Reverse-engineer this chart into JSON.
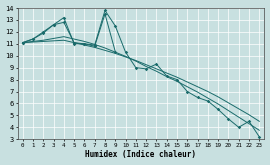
{
  "xlabel": "Humidex (Indice chaleur)",
  "xlim": [
    -0.5,
    23.5
  ],
  "ylim": [
    3,
    14
  ],
  "yticks": [
    3,
    4,
    5,
    6,
    7,
    8,
    9,
    10,
    11,
    12,
    13,
    14
  ],
  "xticks": [
    0,
    1,
    2,
    3,
    4,
    5,
    6,
    7,
    8,
    9,
    10,
    11,
    12,
    13,
    14,
    15,
    16,
    17,
    18,
    19,
    20,
    21,
    22,
    23
  ],
  "bg_color": "#c8e0e0",
  "grid_color": "#ffffff",
  "line_color": "#1a6b6b",
  "line1_x": [
    0,
    1,
    2,
    3,
    4,
    5,
    6,
    7,
    8,
    9,
    10,
    11,
    12,
    13,
    14,
    15,
    16,
    17,
    18,
    19,
    20,
    21,
    22,
    23
  ],
  "line1_y": [
    11.1,
    11.4,
    12.0,
    12.6,
    12.8,
    11.1,
    11.0,
    10.9,
    13.8,
    12.5,
    10.3,
    9.0,
    8.9,
    9.3,
    8.3,
    8.0,
    7.0,
    6.5,
    6.2,
    5.5,
    4.7,
    4.0,
    4.5,
    3.2
  ],
  "line2_x": [
    0,
    1,
    2,
    3,
    4,
    5,
    6,
    7,
    8,
    9
  ],
  "line2_y": [
    11.1,
    11.4,
    11.9,
    12.6,
    13.2,
    11.0,
    11.0,
    10.8,
    13.5,
    10.35
  ],
  "line3_x": [
    0,
    1,
    2,
    3,
    4,
    5,
    6,
    7,
    8,
    9,
    10,
    11,
    12,
    13,
    14,
    15,
    16,
    17,
    18,
    19,
    20,
    21,
    22,
    23
  ],
  "line3_y": [
    11.1,
    11.15,
    11.2,
    11.25,
    11.3,
    11.1,
    10.9,
    10.7,
    10.45,
    10.2,
    9.9,
    9.6,
    9.25,
    8.9,
    8.55,
    8.2,
    7.8,
    7.4,
    7.0,
    6.55,
    6.05,
    5.55,
    5.05,
    4.5
  ],
  "line4_x": [
    0,
    1,
    2,
    3,
    4,
    5,
    6,
    7,
    8,
    9,
    10,
    11,
    12,
    13,
    14,
    15,
    16,
    17,
    18,
    19,
    20,
    21,
    22,
    23
  ],
  "line4_y": [
    11.1,
    11.2,
    11.3,
    11.45,
    11.6,
    11.4,
    11.2,
    10.95,
    10.65,
    10.3,
    9.95,
    9.55,
    9.1,
    8.7,
    8.25,
    7.85,
    7.4,
    6.95,
    6.45,
    5.95,
    5.4,
    4.85,
    4.3,
    3.75
  ]
}
